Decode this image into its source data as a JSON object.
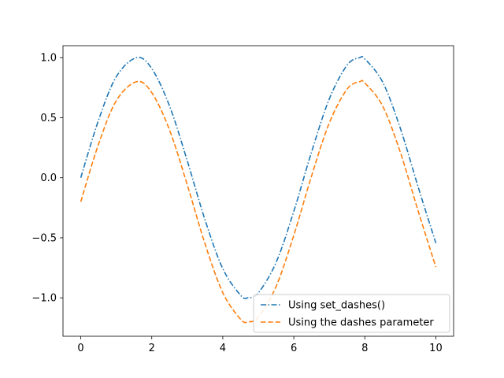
{
  "chart_data": {
    "type": "line",
    "title": "",
    "xlabel": "",
    "ylabel": "",
    "xlim": [
      -0.5,
      10.5
    ],
    "ylim": [
      -1.32,
      1.1
    ],
    "grid": false,
    "legend_position": "lower-right",
    "x_ticks": [
      0,
      2,
      4,
      6,
      8,
      10
    ],
    "x_tick_labels": [
      "0",
      "2",
      "4",
      "6",
      "8",
      "10"
    ],
    "y_ticks": [
      1.0,
      0.5,
      0.0,
      -0.5,
      -1.0
    ],
    "y_tick_labels": [
      "1.0",
      "0.5",
      "0.0",
      "−0.5",
      "−1.0"
    ],
    "series": [
      {
        "name": "Using set_dashes()",
        "color": "#1f77b4",
        "linestyle": "dashdot",
        "x": [
          0,
          0.5,
          1.0,
          1.5708,
          2.0,
          2.5,
          3.0,
          3.5,
          4.0,
          4.5,
          4.7124,
          5.0,
          5.5,
          6.0,
          6.5,
          7.0,
          7.5,
          7.854,
          8.0,
          8.5,
          9.0,
          9.5,
          10.0
        ],
        "y": [
          0.0,
          0.479,
          0.841,
          1.0,
          0.909,
          0.598,
          0.141,
          -0.351,
          -0.757,
          -0.978,
          -1.0,
          -0.959,
          -0.706,
          -0.279,
          0.215,
          0.657,
          0.938,
          1.0,
          0.989,
          0.798,
          0.412,
          -0.075,
          -0.544
        ]
      },
      {
        "name": "Using the dashes parameter",
        "color": "#ff7f0e",
        "linestyle": "dashed",
        "x": [
          0,
          0.5,
          1.0,
          1.5708,
          2.0,
          2.5,
          3.0,
          3.5,
          4.0,
          4.5,
          4.7124,
          5.0,
          5.5,
          6.0,
          6.5,
          7.0,
          7.5,
          7.854,
          8.0,
          8.5,
          9.0,
          9.5,
          10.0
        ],
        "y": [
          -0.2,
          0.279,
          0.641,
          0.8,
          0.709,
          0.398,
          -0.059,
          -0.551,
          -0.957,
          -1.178,
          -1.2,
          -1.159,
          -0.906,
          -0.479,
          0.015,
          0.457,
          0.738,
          0.8,
          0.789,
          0.598,
          0.212,
          -0.275,
          -0.744
        ]
      }
    ]
  }
}
